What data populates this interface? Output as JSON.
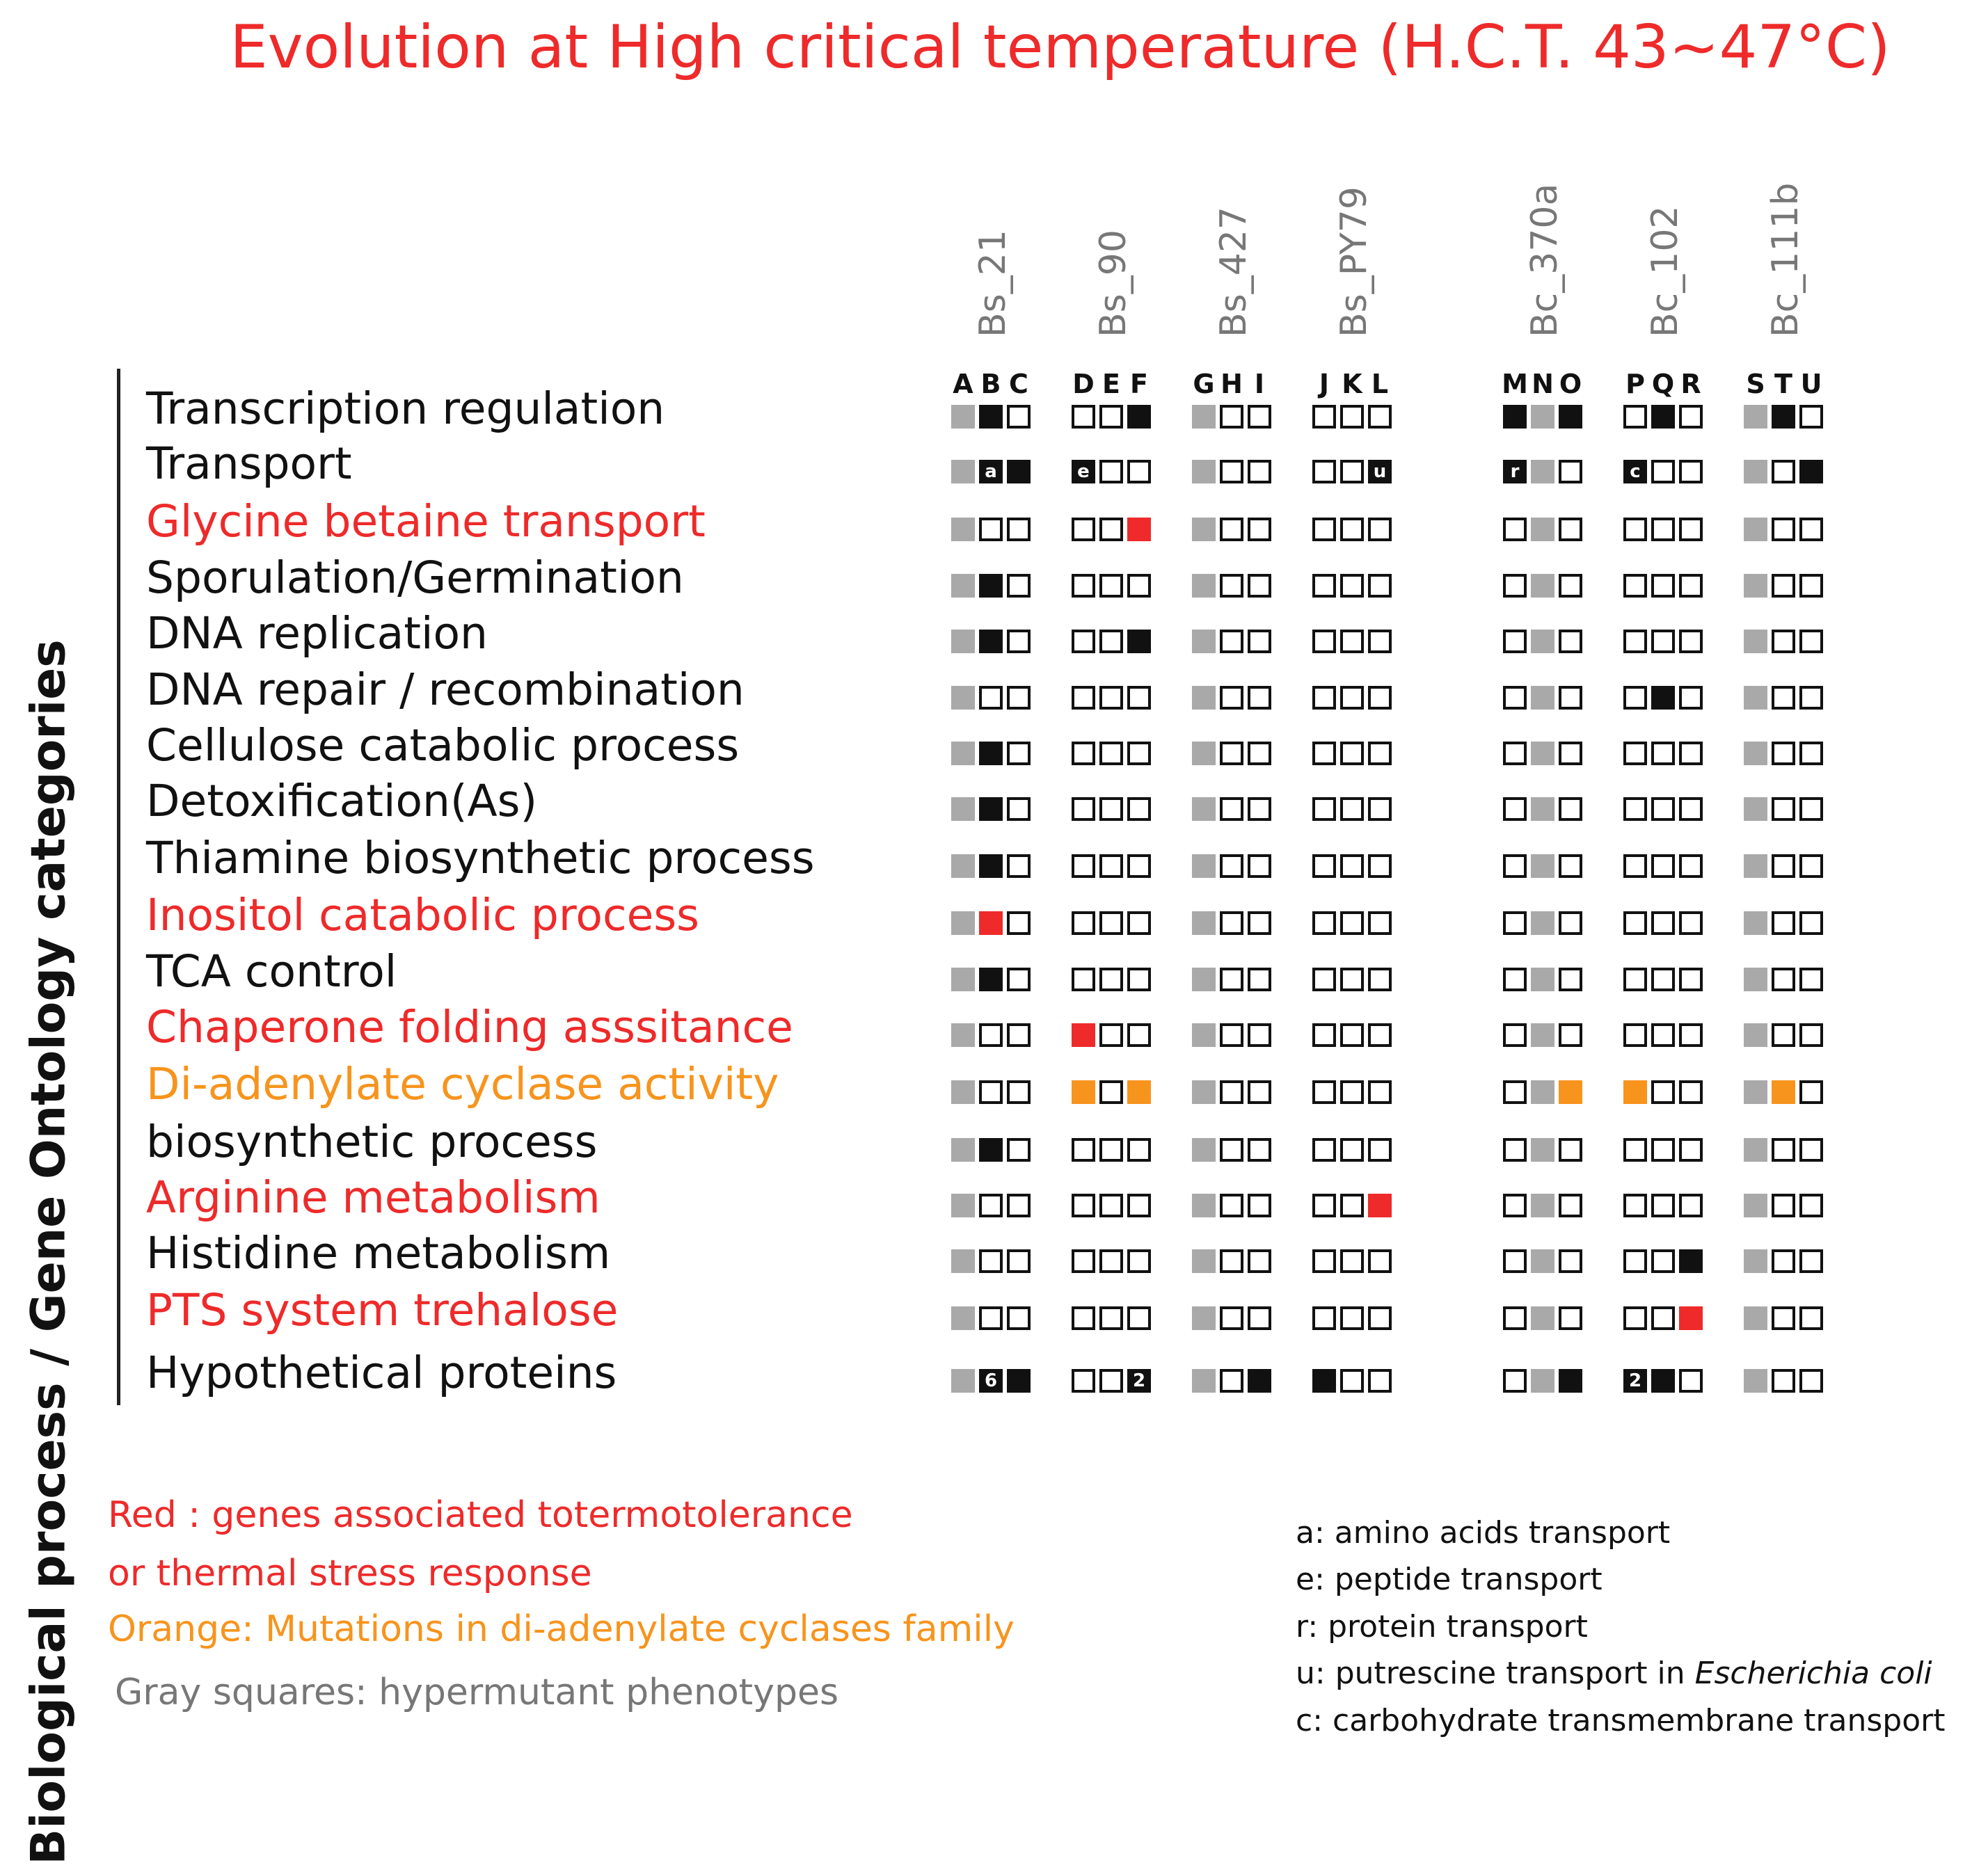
{
  "title": "Evolution at High critical temperature  (H.C.T.  43~47°C)",
  "y_axis_label": "Biological   process   / Gene Ontology  categories",
  "colors": {
    "title": "#ee2a2a",
    "red": "#ee2a2a",
    "orange": "#f7941d",
    "black": "#111111",
    "gray": "#a9a9a9",
    "white": "#ffffff"
  },
  "groups": [
    {
      "strain": "Bs_21",
      "letters": [
        "A",
        "B",
        "C"
      ]
    },
    {
      "strain": "Bs_90",
      "letters": [
        "D",
        "E",
        "F"
      ]
    },
    {
      "strain": "Bs_427",
      "letters": [
        "G",
        "H",
        "I"
      ]
    },
    {
      "strain": "Bs_PY79",
      "letters": [
        "J",
        "K",
        "L"
      ]
    },
    {
      "strain": "Bc_370a",
      "letters": [
        "M",
        "N",
        "O"
      ]
    },
    {
      "strain": "Bc_102",
      "letters": [
        "P",
        "Q",
        "R"
      ]
    },
    {
      "strain": "Bc_111b",
      "letters": [
        "S",
        "T",
        "U"
      ]
    }
  ],
  "cell_codes": {
    "g": "gray square (hypermutant)",
    "w": "white",
    "k": "black",
    "r": "red",
    "o": "orange"
  },
  "categories": [
    {
      "label": "Transcription regulation",
      "color": "black",
      "cells": [
        [
          "g",
          "k",
          "w"
        ],
        [
          "w",
          "w",
          "k"
        ],
        [
          "g",
          "w",
          "w"
        ],
        [
          "w",
          "w",
          "w"
        ],
        [
          "k",
          "g",
          "k"
        ],
        [
          "w",
          "k",
          "w"
        ],
        [
          "g",
          "k",
          "w"
        ]
      ]
    },
    {
      "label": "Transport",
      "color": "black",
      "cells": [
        [
          "g",
          "k:a",
          "k"
        ],
        [
          "k:e",
          "w",
          "w"
        ],
        [
          "g",
          "w",
          "w"
        ],
        [
          "w",
          "w",
          "k:u"
        ],
        [
          "k:r",
          "g",
          "w"
        ],
        [
          "k:c",
          "w",
          "w"
        ],
        [
          "g",
          "w",
          "k"
        ]
      ]
    },
    {
      "label": "Glycine betaine transport",
      "color": "red",
      "cells": [
        [
          "g",
          "w",
          "w"
        ],
        [
          "w",
          "w",
          "r"
        ],
        [
          "g",
          "w",
          "w"
        ],
        [
          "w",
          "w",
          "w"
        ],
        [
          "w",
          "g",
          "w"
        ],
        [
          "w",
          "w",
          "w"
        ],
        [
          "g",
          "w",
          "w"
        ]
      ]
    },
    {
      "label": "Sporulation/Germination",
      "color": "black",
      "cells": [
        [
          "g",
          "k",
          "w"
        ],
        [
          "w",
          "w",
          "w"
        ],
        [
          "g",
          "w",
          "w"
        ],
        [
          "w",
          "w",
          "w"
        ],
        [
          "w",
          "g",
          "w"
        ],
        [
          "w",
          "w",
          "w"
        ],
        [
          "g",
          "w",
          "w"
        ]
      ]
    },
    {
      "label": "DNA replication",
      "color": "black",
      "cells": [
        [
          "g",
          "k",
          "w"
        ],
        [
          "w",
          "w",
          "k"
        ],
        [
          "g",
          "w",
          "w"
        ],
        [
          "w",
          "w",
          "w"
        ],
        [
          "w",
          "g",
          "w"
        ],
        [
          "w",
          "w",
          "w"
        ],
        [
          "g",
          "w",
          "w"
        ]
      ]
    },
    {
      "label": "DNA repair / recombination",
      "color": "black",
      "cells": [
        [
          "g",
          "w",
          "w"
        ],
        [
          "w",
          "w",
          "w"
        ],
        [
          "g",
          "w",
          "w"
        ],
        [
          "w",
          "w",
          "w"
        ],
        [
          "w",
          "g",
          "w"
        ],
        [
          "w",
          "k",
          "w"
        ],
        [
          "g",
          "w",
          "w"
        ]
      ]
    },
    {
      "label": "Cellulose catabolic process",
      "color": "black",
      "cells": [
        [
          "g",
          "k",
          "w"
        ],
        [
          "w",
          "w",
          "w"
        ],
        [
          "g",
          "w",
          "w"
        ],
        [
          "w",
          "w",
          "w"
        ],
        [
          "w",
          "g",
          "w"
        ],
        [
          "w",
          "w",
          "w"
        ],
        [
          "g",
          "w",
          "w"
        ]
      ]
    },
    {
      "label": "Detoxification(As)",
      "color": "black",
      "cells": [
        [
          "g",
          "k",
          "w"
        ],
        [
          "w",
          "w",
          "w"
        ],
        [
          "g",
          "w",
          "w"
        ],
        [
          "w",
          "w",
          "w"
        ],
        [
          "w",
          "g",
          "w"
        ],
        [
          "w",
          "w",
          "w"
        ],
        [
          "g",
          "w",
          "w"
        ]
      ]
    },
    {
      "label": "Thiamine biosynthetic process",
      "color": "black",
      "cells": [
        [
          "g",
          "k",
          "w"
        ],
        [
          "w",
          "w",
          "w"
        ],
        [
          "g",
          "w",
          "w"
        ],
        [
          "w",
          "w",
          "w"
        ],
        [
          "w",
          "g",
          "w"
        ],
        [
          "w",
          "w",
          "w"
        ],
        [
          "g",
          "w",
          "w"
        ]
      ]
    },
    {
      "label": "Inositol catabolic process",
      "color": "red",
      "cells": [
        [
          "g",
          "r",
          "w"
        ],
        [
          "w",
          "w",
          "w"
        ],
        [
          "g",
          "w",
          "w"
        ],
        [
          "w",
          "w",
          "w"
        ],
        [
          "w",
          "g",
          "w"
        ],
        [
          "w",
          "w",
          "w"
        ],
        [
          "g",
          "w",
          "w"
        ]
      ]
    },
    {
      "label": "TCA control",
      "color": "black",
      "cells": [
        [
          "g",
          "k",
          "w"
        ],
        [
          "w",
          "w",
          "w"
        ],
        [
          "g",
          "w",
          "w"
        ],
        [
          "w",
          "w",
          "w"
        ],
        [
          "w",
          "g",
          "w"
        ],
        [
          "w",
          "w",
          "w"
        ],
        [
          "g",
          "w",
          "w"
        ]
      ]
    },
    {
      "label": "Chaperone folding asssitance",
      "color": "red",
      "cells": [
        [
          "g",
          "w",
          "w"
        ],
        [
          "r",
          "w",
          "w"
        ],
        [
          "g",
          "w",
          "w"
        ],
        [
          "w",
          "w",
          "w"
        ],
        [
          "w",
          "g",
          "w"
        ],
        [
          "w",
          "w",
          "w"
        ],
        [
          "g",
          "w",
          "w"
        ]
      ]
    },
    {
      "label": "Di-adenylate cyclase activity",
      "color": "orange",
      "cells": [
        [
          "g",
          "w",
          "w"
        ],
        [
          "o",
          "w",
          "o"
        ],
        [
          "g",
          "w",
          "w"
        ],
        [
          "w",
          "w",
          "w"
        ],
        [
          "w",
          "g",
          "o"
        ],
        [
          "o",
          "w",
          "w"
        ],
        [
          "g",
          "o",
          "w"
        ]
      ]
    },
    {
      "label": "biosynthetic process",
      "color": "black",
      "cells": [
        [
          "g",
          "k",
          "w"
        ],
        [
          "w",
          "w",
          "w"
        ],
        [
          "g",
          "w",
          "w"
        ],
        [
          "w",
          "w",
          "w"
        ],
        [
          "w",
          "g",
          "w"
        ],
        [
          "w",
          "w",
          "w"
        ],
        [
          "g",
          "w",
          "w"
        ]
      ]
    },
    {
      "label": "Arginine metabolism",
      "color": "red",
      "cells": [
        [
          "g",
          "w",
          "w"
        ],
        [
          "w",
          "w",
          "w"
        ],
        [
          "g",
          "w",
          "w"
        ],
        [
          "w",
          "w",
          "r"
        ],
        [
          "w",
          "g",
          "w"
        ],
        [
          "w",
          "w",
          "w"
        ],
        [
          "g",
          "w",
          "w"
        ]
      ]
    },
    {
      "label": "Histidine metabolism",
      "color": "black",
      "cells": [
        [
          "g",
          "w",
          "w"
        ],
        [
          "w",
          "w",
          "w"
        ],
        [
          "g",
          "w",
          "w"
        ],
        [
          "w",
          "w",
          "w"
        ],
        [
          "w",
          "g",
          "w"
        ],
        [
          "w",
          "w",
          "k"
        ],
        [
          "g",
          "w",
          "w"
        ]
      ]
    },
    {
      "label": "PTS system trehalose",
      "color": "red",
      "cells": [
        [
          "g",
          "w",
          "w"
        ],
        [
          "w",
          "w",
          "w"
        ],
        [
          "g",
          "w",
          "w"
        ],
        [
          "w",
          "w",
          "w"
        ],
        [
          "w",
          "g",
          "w"
        ],
        [
          "w",
          "w",
          "r"
        ],
        [
          "g",
          "w",
          "w"
        ]
      ]
    },
    {
      "label": "Hypothetical proteins",
      "color": "black",
      "cells": [
        [
          "g",
          "k:6",
          "k"
        ],
        [
          "w",
          "w",
          "k:2"
        ],
        [
          "g",
          "w",
          "k"
        ],
        [
          "k",
          "w",
          "w"
        ],
        [
          "w",
          "g",
          "k"
        ],
        [
          "k:2",
          "k",
          "w"
        ],
        [
          "g",
          "w",
          "w"
        ]
      ]
    }
  ],
  "legend": [
    {
      "text": "Red :  genes associated totermotolerance",
      "color": "red"
    },
    {
      "text": "or thermal stress response",
      "color": "red"
    },
    {
      "text": "Orange: Mutations in di-adenylate cyclases family",
      "color": "orange"
    },
    {
      "text": "Gray squares: hypermutant phenotypes",
      "color": "gray"
    }
  ],
  "notes": [
    {
      "prefix": "a: amino acids transport",
      "italic": ""
    },
    {
      "prefix": "e: peptide transport",
      "italic": ""
    },
    {
      "prefix": "r:  protein transport",
      "italic": ""
    },
    {
      "prefix": "u: putrescine transport in ",
      "italic": "Escherichia coli"
    },
    {
      "prefix": "c: carbohydrate transmembrane transport",
      "italic": ""
    }
  ]
}
